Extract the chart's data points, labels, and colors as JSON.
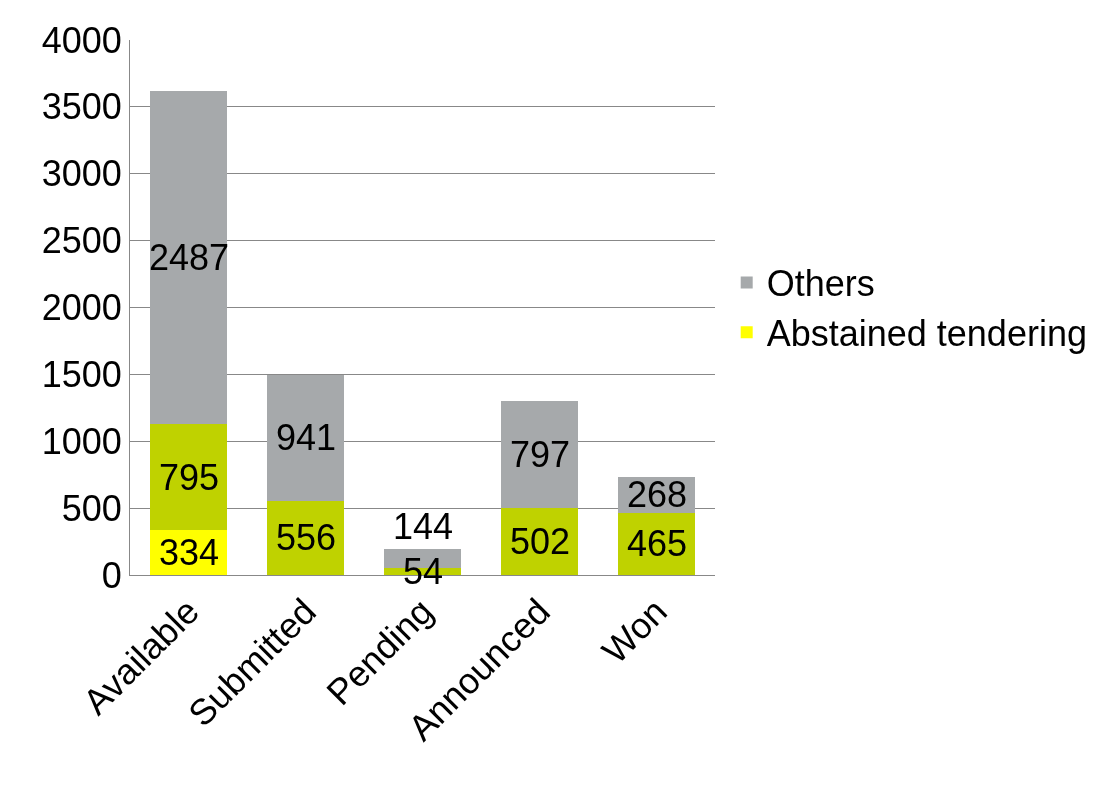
{
  "chart_data": {
    "type": "bar",
    "stacked": true,
    "categories": [
      "Available",
      "Submitted",
      "Pending",
      "Announced",
      "Won"
    ],
    "series": [
      {
        "name": "Abstained tendering",
        "color": "#ffff00",
        "values": [
          334,
          null,
          null,
          null,
          null
        ]
      },
      {
        "color": "#bfd200",
        "values": [
          795,
          556,
          54,
          502,
          465
        ]
      },
      {
        "name": "Others",
        "color": "#a6a9ab",
        "values": [
          2487,
          941,
          144,
          797,
          268
        ]
      }
    ],
    "ylim": [
      0,
      4000
    ],
    "yticks": [
      0,
      500,
      1000,
      1500,
      2000,
      2500,
      3000,
      3500,
      4000
    ],
    "grid": "y",
    "legend": "right",
    "data_labels": true
  }
}
